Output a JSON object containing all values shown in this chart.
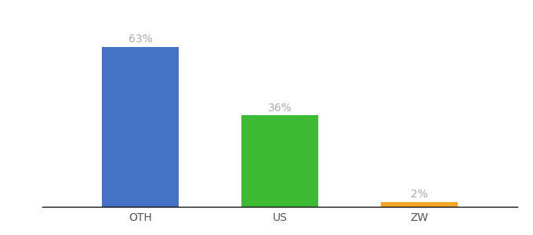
{
  "categories": [
    "OTH",
    "US",
    "ZW"
  ],
  "values": [
    63,
    36,
    2
  ],
  "bar_colors": [
    "#4472c4",
    "#3dbb35",
    "#f5a623"
  ],
  "labels": [
    "63%",
    "36%",
    "2%"
  ],
  "background_color": "#ffffff",
  "ylim": [
    0,
    75
  ],
  "bar_width": 0.55,
  "label_fontsize": 10,
  "tick_fontsize": 10,
  "label_color": "#aaaaaa"
}
